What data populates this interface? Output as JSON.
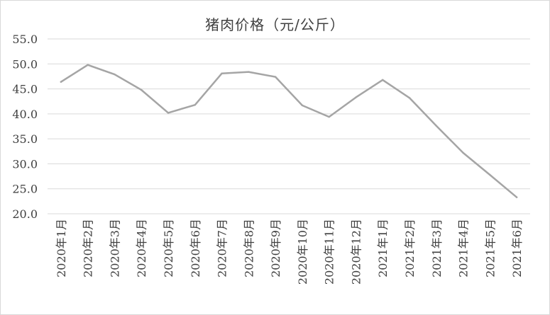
{
  "chart_data": {
    "type": "line",
    "title": "猪肉价格（元/公斤）",
    "xlabel": "",
    "ylabel": "",
    "ylim": [
      20.0,
      55.0
    ],
    "yticks": [
      "20.0",
      "25.0",
      "30.0",
      "35.0",
      "40.0",
      "45.0",
      "50.0",
      "55.0"
    ],
    "grid": true,
    "legend": "none",
    "categories": [
      "2020年1月",
      "2020年2月",
      "2020年3月",
      "2020年4月",
      "2020年5月",
      "2020年6月",
      "2020年7月",
      "2020年8月",
      "2020年9月",
      "2020年10月",
      "2020年11月",
      "2020年12月",
      "2021年1月",
      "2021年2月",
      "2021年3月",
      "2021年4月",
      "2021年5月",
      "2021年6月"
    ],
    "series": [
      {
        "values": [
          46.4,
          49.8,
          47.9,
          44.8,
          40.2,
          41.8,
          48.1,
          48.4,
          47.4,
          41.7,
          39.4,
          43.3,
          46.8,
          43.2,
          37.6,
          32.2,
          27.8,
          23.3
        ],
        "color": "#a5a5a5"
      }
    ],
    "colors": {
      "line": "#a5a5a5",
      "grid": "#d9d9d9",
      "text": "#404040"
    }
  }
}
